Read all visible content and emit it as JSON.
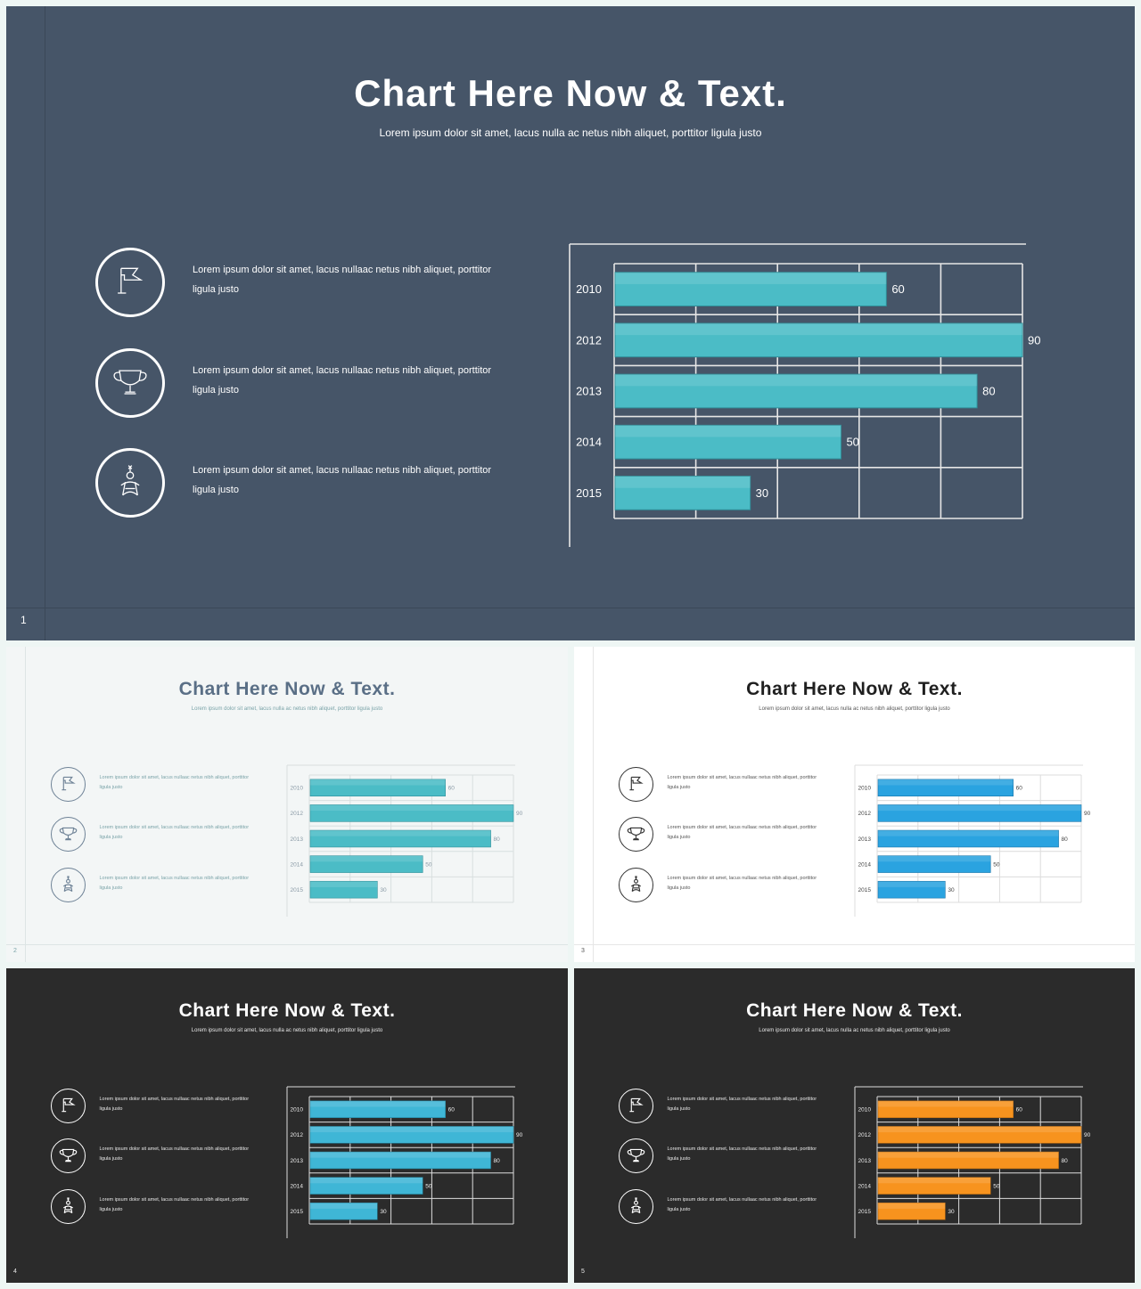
{
  "slides": [
    {
      "number": "1",
      "theme": {
        "bg": "#465568",
        "title": "#ffffff",
        "text": "#ffffff",
        "line": "#3b4858",
        "icon": "#ffffff",
        "bar": "#4bbcc6",
        "barEdge": "#2f8f99",
        "grid": "#e6e6e6",
        "label": "#ffffff"
      },
      "title": "Chart Here Now & Text.",
      "subtitle": "Lorem  ipsum dolor sit amet, lacus nulla ac netus nibh aliquet, porttitor ligula justo",
      "features": [
        {
          "icon": "flag-icon",
          "text": "Lorem ipsum dolor sit amet, lacus nullaac netus nibh aliquet, porttitor ligula justo"
        },
        {
          "icon": "trophy-icon",
          "text": "Lorem ipsum dolor sit amet, lacus nullaac netus nibh aliquet, porttitor ligula justo"
        },
        {
          "icon": "person-icon",
          "text": "Lorem ipsum dolor sit amet, lacus nullaac netus nibh aliquet, porttitor ligula justo"
        }
      ]
    },
    {
      "number": "2",
      "theme": {
        "bg": "#f3f6f6",
        "title": "#5a6f86",
        "text": "#7aa3a8",
        "line": "#dde5e5",
        "icon": "#6e8296",
        "bar": "#4bbcc6",
        "barEdge": "#2f8f99",
        "grid": "#d8dfdf",
        "label": "#8a9aa6"
      },
      "title": "Chart Here Now & Text.",
      "subtitle": "Lorem  ipsum dolor sit amet, lacus nulla ac netus nibh aliquet, porttitor ligula justo",
      "features": [
        {
          "icon": "flag-icon",
          "text": "Lorem ipsum dolor sit amet, lacus nullaac netus nibh aliquet, porttitor ligula justo"
        },
        {
          "icon": "trophy-icon",
          "text": "Lorem ipsum dolor sit amet, lacus nullaac netus nibh aliquet, porttitor ligula justo"
        },
        {
          "icon": "person-icon",
          "text": "Lorem ipsum dolor sit amet, lacus nullaac netus nibh aliquet, porttitor ligula justo"
        }
      ]
    },
    {
      "number": "3",
      "theme": {
        "bg": "#ffffff",
        "title": "#1f1f1f",
        "text": "#555555",
        "line": "#e6e6e6",
        "icon": "#333333",
        "bar": "#2aa3e0",
        "barEdge": "#1673a8",
        "grid": "#dcdcdc",
        "label": "#444444"
      },
      "title": "Chart Here Now & Text.",
      "subtitle": "Lorem  ipsum dolor sit amet, lacus nulla ac netus nibh aliquet, porttitor ligula justo",
      "features": [
        {
          "icon": "flag-icon",
          "text": "Lorem ipsum dolor sit amet, lacus nullaac netus nibh aliquet, porttitor ligula justo"
        },
        {
          "icon": "trophy-icon",
          "text": "Lorem ipsum dolor sit amet, lacus nullaac netus nibh aliquet, porttitor ligula justo"
        },
        {
          "icon": "person-icon",
          "text": "Lorem ipsum dolor sit amet, lacus nullaac netus nibh aliquet, porttitor ligula justo"
        }
      ]
    },
    {
      "number": "4",
      "theme": {
        "bg": "#2b2b2b",
        "title": "#ffffff",
        "text": "#e8e8e8",
        "line": "#333333",
        "icon": "#ffffff",
        "bar": "#3fb6d6",
        "barEdge": "#1f7f99",
        "grid": "#dddddd",
        "label": "#eeeeee"
      },
      "title": "Chart Here Now & Text.",
      "subtitle": "Lorem  ipsum dolor sit amet, lacus nulla ac netus nibh aliquet, porttitor ligula justo",
      "features": [
        {
          "icon": "flag-icon",
          "text": "Lorem ipsum dolor sit amet, lacus nullaac netus nibh aliquet, porttitor ligula justo"
        },
        {
          "icon": "trophy-icon",
          "text": "Lorem ipsum dolor sit amet, lacus nullaac netus nibh aliquet, porttitor ligula justo"
        },
        {
          "icon": "person-icon",
          "text": "Lorem ipsum dolor sit amet, lacus nullaac netus nibh aliquet, porttitor ligula justo"
        }
      ]
    },
    {
      "number": "5",
      "theme": {
        "bg": "#2b2b2b",
        "title": "#ffffff",
        "text": "#e8e8e8",
        "line": "#333333",
        "icon": "#ffffff",
        "bar": "#f7931e",
        "barEdge": "#b86a10",
        "grid": "#dddddd",
        "label": "#eeeeee"
      },
      "title": "Chart Here Now & Text.",
      "subtitle": "Lorem  ipsum dolor sit amet, lacus nulla ac netus nibh aliquet, porttitor ligula justo",
      "features": [
        {
          "icon": "flag-icon",
          "text": "Lorem ipsum dolor sit amet, lacus nullaac netus nibh aliquet, porttitor ligula justo"
        },
        {
          "icon": "trophy-icon",
          "text": "Lorem ipsum dolor sit amet, lacus nullaac netus nibh aliquet, porttitor ligula justo"
        },
        {
          "icon": "person-icon",
          "text": "Lorem ipsum dolor sit amet, lacus nullaac netus nibh aliquet, porttitor ligula justo"
        }
      ]
    }
  ],
  "chart_data": {
    "type": "bar",
    "orientation": "horizontal",
    "categories": [
      "2010",
      "2012",
      "2013",
      "2014",
      "2015"
    ],
    "values": [
      60,
      90,
      80,
      50,
      30
    ],
    "xlim": [
      0,
      90
    ],
    "grid": true
  }
}
